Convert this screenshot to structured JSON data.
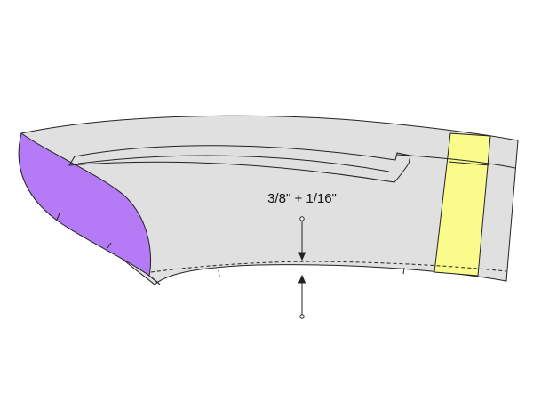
{
  "diagram": {
    "annotation_label": "3/8\" + 1/16\"",
    "colors": {
      "background": "#ffffff",
      "piece_fill": "#e0e0e0",
      "outline": "#222222",
      "purple_panel": "#b57bf7",
      "yellow_band": "#fbfb8c"
    },
    "icons": {
      "up_arrow": "arrow-up-icon",
      "down_arrow": "arrow-down-icon"
    }
  }
}
